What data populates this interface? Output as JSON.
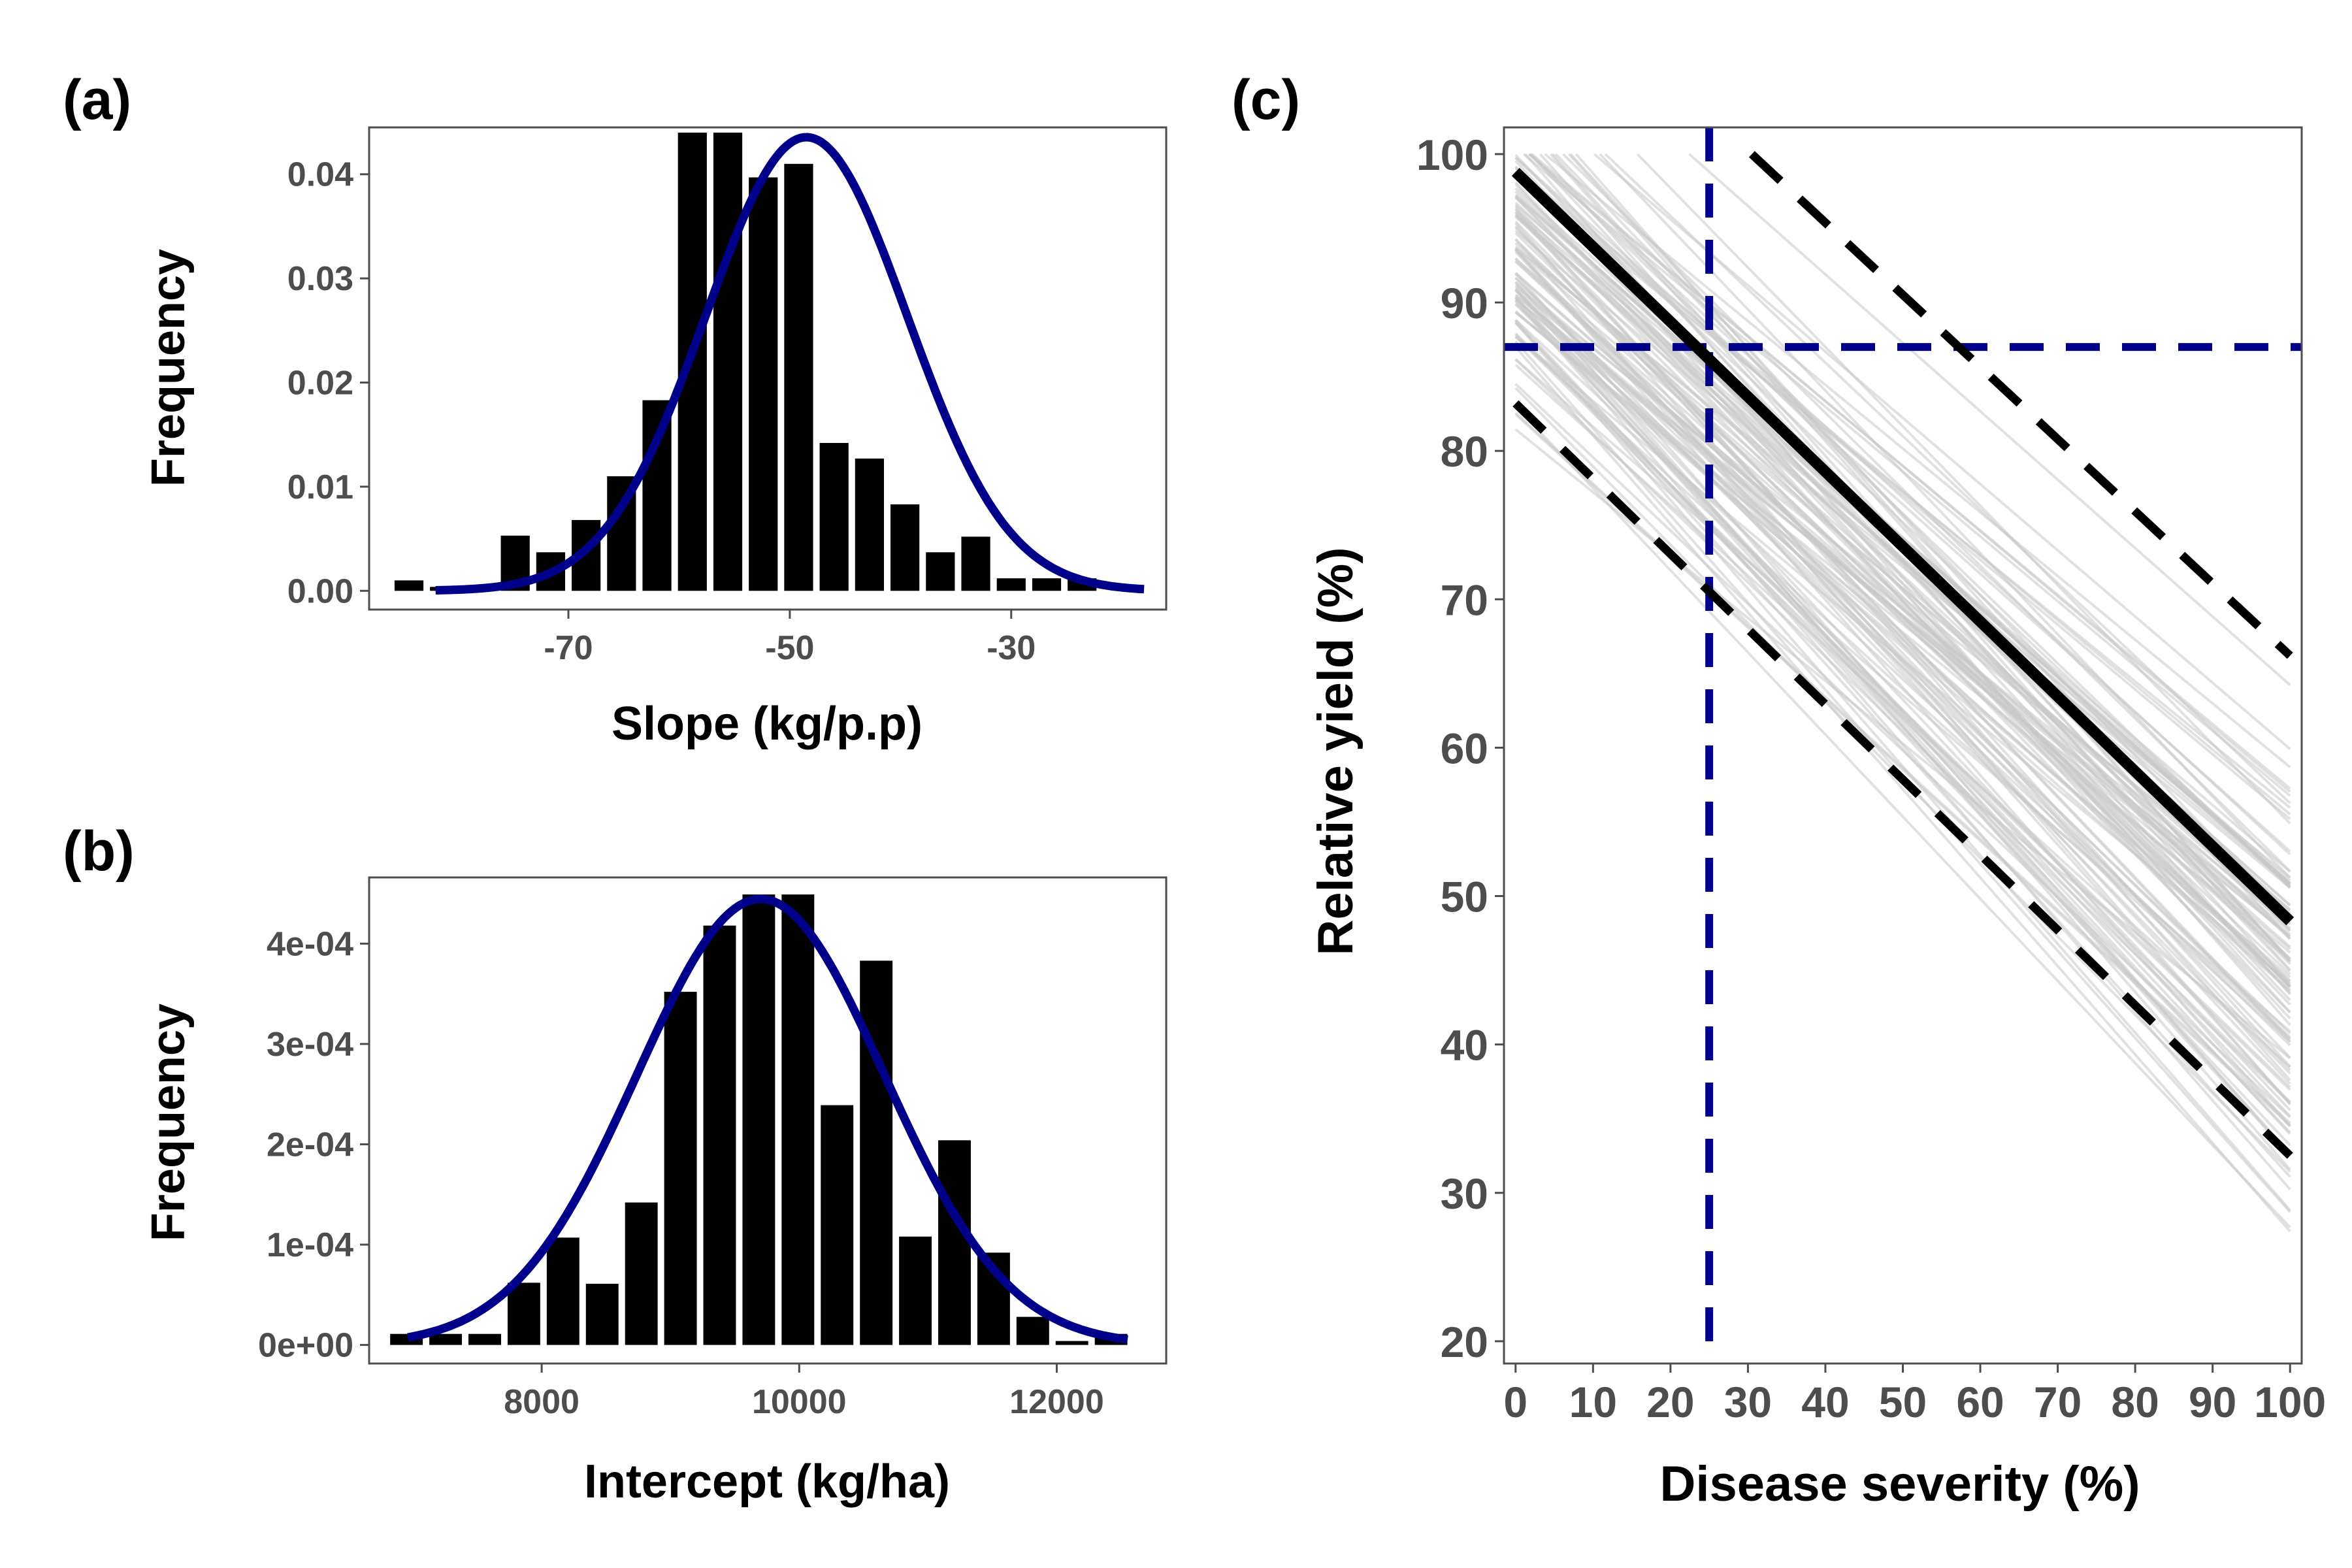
{
  "colors": {
    "bar": "#000000",
    "fit_curve": "#00008b",
    "mean_line": "#000000",
    "ci_line": "#000000",
    "sim_lines": "#c8c8c8",
    "reference_lines": "#00008b",
    "axis_text": "#4d4d4d",
    "frame": "#4d4d4d"
  },
  "chart_data": [
    {
      "panel": "(a)",
      "type": "bar",
      "xlabel": "Slope (kg/p.p)",
      "ylabel": "Frequency",
      "xlim": [
        -88,
        -16
      ],
      "ylim": [
        -0.0018,
        0.0445
      ],
      "xticks": [
        "-70",
        "-50",
        "-30"
      ],
      "xtick_values": [
        -70,
        -50,
        -30
      ],
      "yticks": [
        "0.00",
        "0.01",
        "0.02",
        "0.03",
        "0.04"
      ],
      "ytick_values": [
        0.0,
        0.01,
        0.02,
        0.03,
        0.04
      ],
      "bin_width": 3.2,
      "bars": [
        {
          "x": -84.4,
          "y": 0.001
        },
        {
          "x": -81.2,
          "y": 0
        },
        {
          "x": -78.0,
          "y": 0
        },
        {
          "x": -74.8,
          "y": 0.0053
        },
        {
          "x": -71.6,
          "y": 0.0037
        },
        {
          "x": -68.4,
          "y": 0.0068
        },
        {
          "x": -65.2,
          "y": 0.011
        },
        {
          "x": -62.0,
          "y": 0.0183
        },
        {
          "x": -58.8,
          "y": 0.044
        },
        {
          "x": -55.6,
          "y": 0.044
        },
        {
          "x": -52.4,
          "y": 0.0397
        },
        {
          "x": -49.2,
          "y": 0.041
        },
        {
          "x": -46.0,
          "y": 0.0142
        },
        {
          "x": -42.8,
          "y": 0.0127
        },
        {
          "x": -39.6,
          "y": 0.0083
        },
        {
          "x": -36.4,
          "y": 0.0037
        },
        {
          "x": -33.2,
          "y": 0.0052
        },
        {
          "x": -30.0,
          "y": 0.0012
        },
        {
          "x": -26.8,
          "y": 0.0012
        },
        {
          "x": -23.6,
          "y": 0.0012
        }
      ],
      "normal_fit": {
        "mean": -48.5,
        "sd": 9.1,
        "xrange": [
          -82,
          -18
        ]
      }
    },
    {
      "panel": "(b)",
      "type": "bar",
      "xlabel": "Intercept (kg/ha)",
      "ylabel": "Frequency",
      "xlim": [
        6660,
        12850
      ],
      "ylim": [
        -1.85e-05,
        0.000466
      ],
      "xticks": [
        "8000",
        "10000",
        "12000"
      ],
      "xtick_values": [
        8000,
        10000,
        12000
      ],
      "yticks": [
        "0e+00",
        "1e-04",
        "2e-04",
        "3e-04",
        "4e-04"
      ],
      "ytick_values": [
        0,
        0.0001,
        0.0002,
        0.0003,
        0.0004
      ],
      "bin_width": 304,
      "bars": [
        {
          "x": 6950,
          "y": 1.1e-05
        },
        {
          "x": 7254,
          "y": 1.1e-05
        },
        {
          "x": 7558,
          "y": 1.1e-05
        },
        {
          "x": 7862,
          "y": 6.2e-05
        },
        {
          "x": 8166,
          "y": 0.000107
        },
        {
          "x": 8470,
          "y": 6.1e-05
        },
        {
          "x": 8774,
          "y": 0.000142
        },
        {
          "x": 9078,
          "y": 0.000352
        },
        {
          "x": 9382,
          "y": 0.000418
        },
        {
          "x": 9686,
          "y": 0.000449
        },
        {
          "x": 9990,
          "y": 0.000449
        },
        {
          "x": 10294,
          "y": 0.000239
        },
        {
          "x": 10598,
          "y": 0.000383
        },
        {
          "x": 10902,
          "y": 0.000108
        },
        {
          "x": 11206,
          "y": 0.000204
        },
        {
          "x": 11510,
          "y": 9.2e-05
        },
        {
          "x": 11814,
          "y": 2.8e-05
        },
        {
          "x": 12118,
          "y": 0
        },
        {
          "x": 12422,
          "y": 1.1e-05
        }
      ],
      "normal_fit": {
        "mean": 9700,
        "sd": 960,
        "xrange": [
          6960,
          12550
        ]
      }
    },
    {
      "panel": "(c)",
      "type": "line",
      "xlabel": "Disease severity (%)",
      "ylabel": "Relative yield (%)",
      "xlim": [
        -1.5,
        101.5
      ],
      "ylim": [
        18.5,
        101.8
      ],
      "xticks": [
        "0",
        "10",
        "20",
        "30",
        "40",
        "50",
        "60",
        "70",
        "80",
        "90",
        "100"
      ],
      "xtick_values": [
        0,
        10,
        20,
        30,
        40,
        50,
        60,
        70,
        80,
        90,
        100
      ],
      "yticks": [
        "20",
        "30",
        "40",
        "50",
        "60",
        "70",
        "80",
        "90",
        "100"
      ],
      "ytick_values": [
        20,
        30,
        40,
        50,
        60,
        70,
        80,
        90,
        100
      ],
      "series": [
        {
          "role": "mean",
          "x": [
            0,
            100
          ],
          "y": [
            98.8,
            48.3
          ]
        },
        {
          "role": "upper",
          "x": [
            30.5,
            100
          ],
          "y": [
            100,
            66.2
          ]
        },
        {
          "role": "lower",
          "x": [
            0,
            100
          ],
          "y": [
            83.2,
            32.5
          ]
        }
      ],
      "simulations": {
        "count": 120,
        "intercept_range": [
          78,
          114
        ],
        "slope_range": [
          -0.42,
          -0.6
        ]
      },
      "reference_lines": {
        "x": 25,
        "y": 87
      }
    }
  ]
}
